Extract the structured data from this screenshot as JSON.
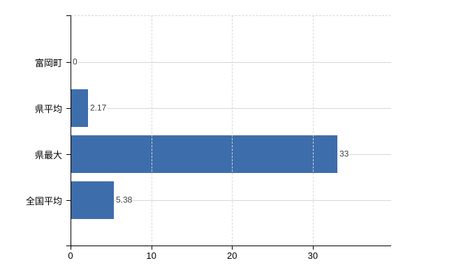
{
  "chart_data": {
    "type": "bar",
    "orientation": "horizontal",
    "title": "",
    "xlabel": "",
    "ylabel": "",
    "categories": [
      "富岡町",
      "県平均",
      "県最大",
      "全国平均"
    ],
    "values": [
      0,
      2.17,
      33,
      5.38
    ],
    "value_labels": [
      "0",
      "2.17",
      "33",
      "5.38"
    ],
    "x_ticks": [
      0,
      10,
      20,
      30
    ],
    "xlim": [
      0,
      39.7
    ],
    "grid": true,
    "legend": false,
    "bar_color": "#3e6dab",
    "grid_color": "#d2dad2",
    "axis_color": "#000000",
    "value_label_color": "#3d3d3d"
  }
}
